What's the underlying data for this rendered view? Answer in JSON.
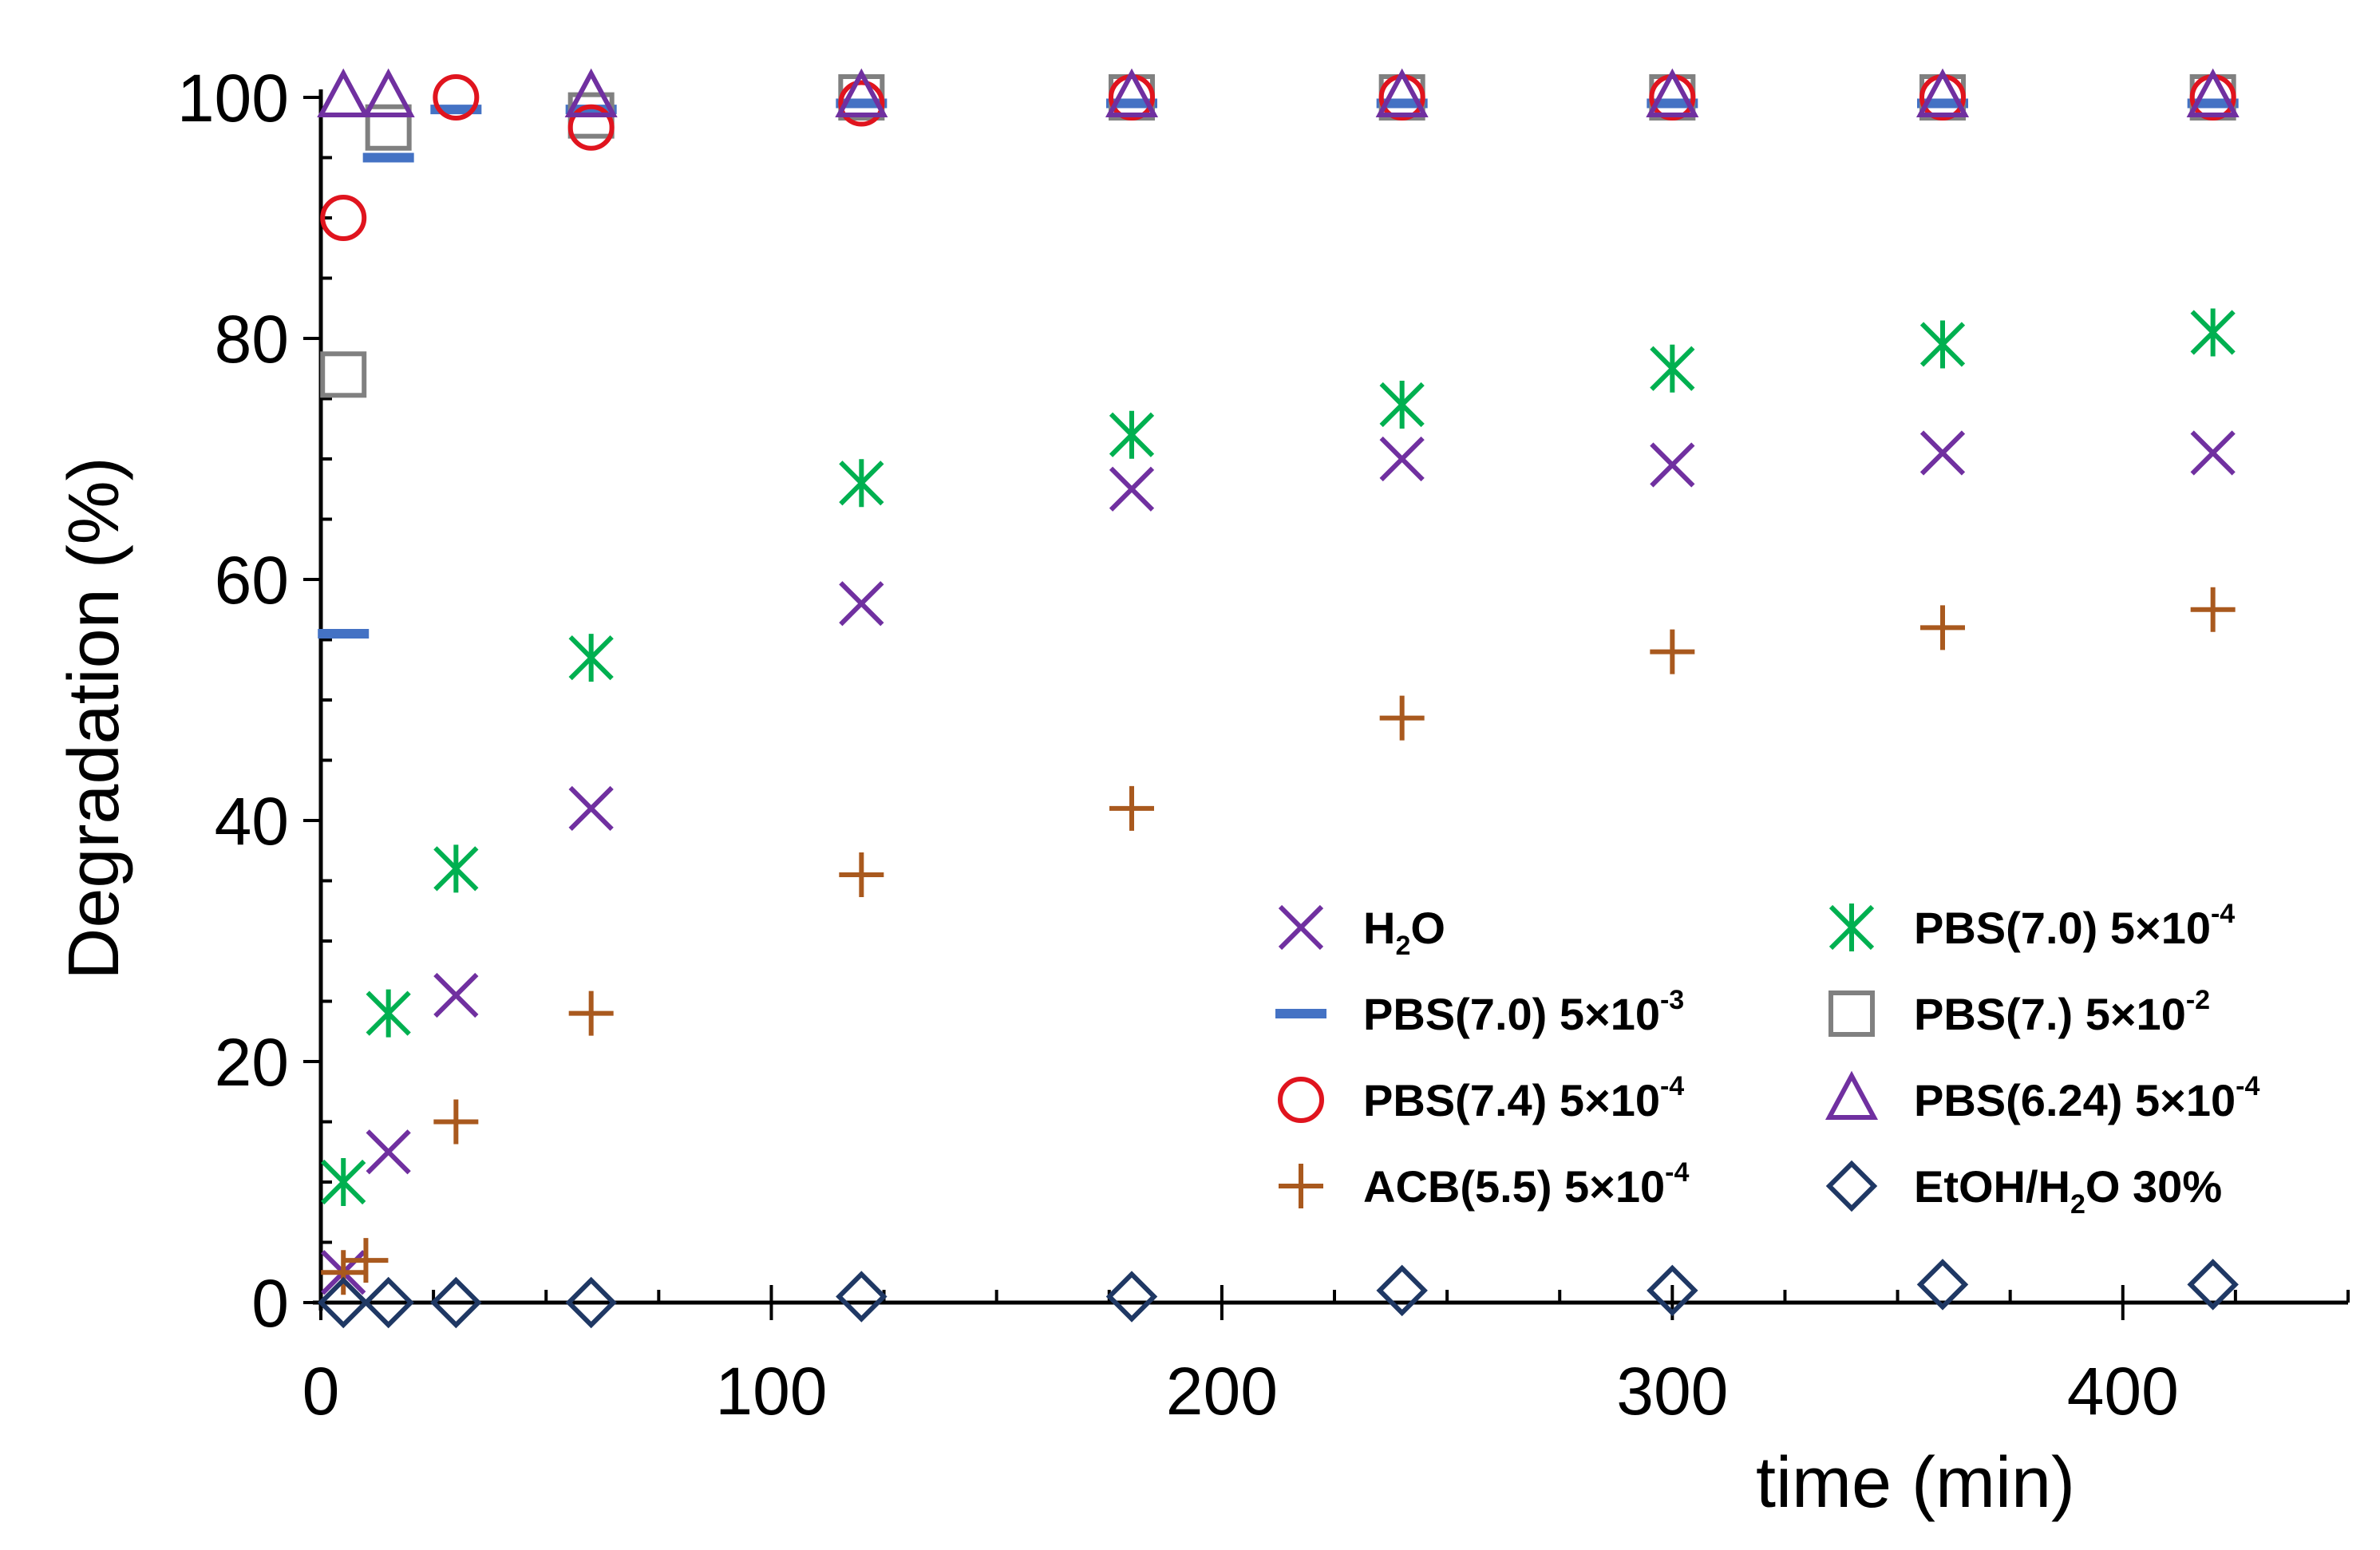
{
  "chart_data": {
    "type": "scatter",
    "title": "",
    "xlabel": "time (min)",
    "ylabel": "Degradation (%)",
    "xlim": [
      0,
      450
    ],
    "ylim": [
      0,
      100
    ],
    "xticks": [
      0,
      100,
      200,
      300,
      400
    ],
    "yticks": [
      0,
      20,
      40,
      60,
      80,
      100
    ],
    "grid": false,
    "legend_position": "lower-right",
    "series": [
      {
        "name": "H2O",
        "label_main": "H",
        "label_sub": "2",
        "label_tail": "O",
        "marker": "x",
        "color": "#7030A0",
        "x": [
          5,
          15,
          30,
          60,
          120,
          180,
          240,
          300,
          360,
          420
        ],
        "y": [
          2.5,
          12.5,
          25.5,
          41,
          58,
          67.5,
          70,
          69.5,
          70.5,
          70.5
        ]
      },
      {
        "name": "PBS(7.0) 5×10-4",
        "label_main": "PBS(7.0) 5×10",
        "label_sup": "-4",
        "marker": "asterisk",
        "color": "#00B050",
        "x": [
          5,
          15,
          30,
          60,
          120,
          180,
          240,
          300,
          360,
          420
        ],
        "y": [
          10,
          24,
          36,
          53.5,
          68,
          72,
          74.5,
          77.5,
          79.5,
          80.5
        ]
      },
      {
        "name": "PBS(7.0) 5×10-3",
        "label_main": "PBS(7.0) 5×10",
        "label_sup": "-3",
        "marker": "dash",
        "color": "#4472C4",
        "x": [
          5,
          15,
          30,
          60,
          120,
          180,
          240,
          300,
          360,
          420
        ],
        "y": [
          55.5,
          95,
          99,
          99,
          99.5,
          99.5,
          99.5,
          99.5,
          99.5,
          99.5
        ]
      },
      {
        "name": "PBS(7.) 5×10-2",
        "label_main": "PBS(7.) 5×10",
        "label_sup": "-2",
        "marker": "square",
        "color": "#808080",
        "x": [
          5,
          15,
          60,
          120,
          180,
          240,
          300,
          360,
          420
        ],
        "y": [
          77,
          97.5,
          98.5,
          100,
          100,
          100,
          100,
          100,
          100
        ]
      },
      {
        "name": "PBS(7.4) 5×10-4",
        "label_main": "PBS(7.4) 5×10",
        "label_sup": "-4",
        "marker": "circle",
        "color": "#E0141E",
        "x": [
          5,
          30,
          60,
          120,
          180,
          240,
          300,
          360,
          420
        ],
        "y": [
          90,
          100,
          97.5,
          99.5,
          100,
          100,
          100,
          100,
          100
        ]
      },
      {
        "name": "PBS(6.24) 5×10-4",
        "label_main": "PBS(6.24) 5×10",
        "label_sup": "-4",
        "marker": "triangle",
        "color": "#7030A0",
        "x": [
          5,
          15,
          60,
          120,
          180,
          240,
          300,
          360,
          420
        ],
        "y": [
          100,
          100,
          100,
          100,
          100,
          100,
          100,
          100,
          100
        ]
      },
      {
        "name": "ACB(5.5) 5×10-4",
        "label_main": "ACB(5.5) 5×10",
        "label_sup": "-4",
        "marker": "plus",
        "color": "#A9591E",
        "x": [
          5,
          10,
          30,
          60,
          120,
          180,
          240,
          300,
          360,
          420
        ],
        "y": [
          2.5,
          3.5,
          15,
          24,
          35.5,
          41,
          48.5,
          54,
          56,
          57.5
        ]
      },
      {
        "name": "EtOH/H2O 30%",
        "label_main": "EtOH/H",
        "label_sub": "2",
        "label_tail": "O 30%",
        "marker": "diamond",
        "color": "#1F3864",
        "x": [
          5,
          15,
          30,
          60,
          120,
          180,
          240,
          300,
          360,
          420
        ],
        "y": [
          0,
          0,
          0,
          0,
          0.5,
          0.5,
          1,
          1,
          1.5,
          1.5
        ]
      }
    ]
  }
}
